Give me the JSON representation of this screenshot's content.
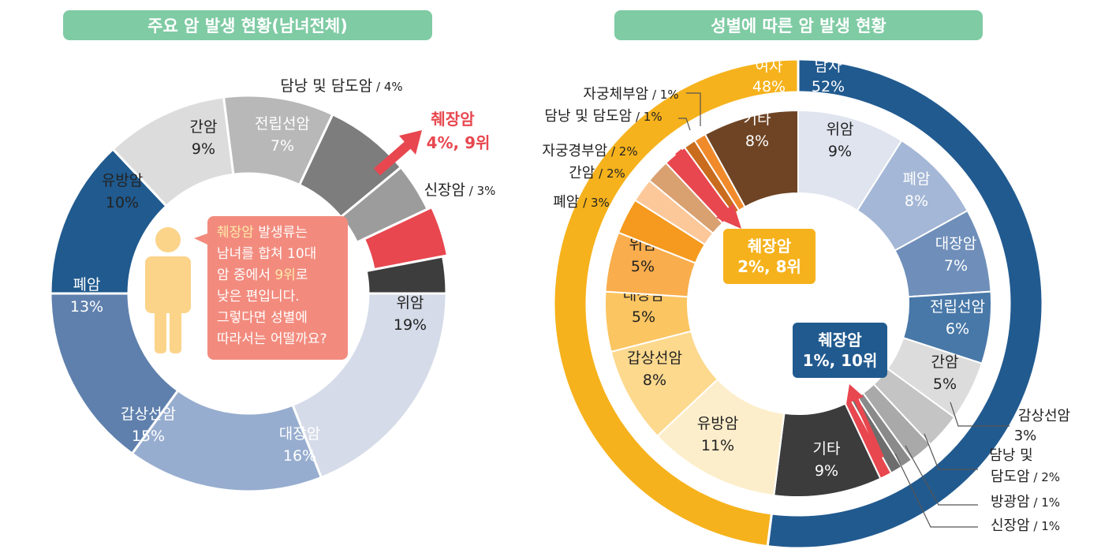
{
  "titles": {
    "left": "주요 암 발생 현황(남녀전체)",
    "right": "성별에 따른 암 발생 현황"
  },
  "bubble": {
    "line1_hl": "췌장암",
    "line1_rest": " 발생류는",
    "line2": "남녀를 합쳐 10대",
    "line3_pre": "암 중에서 ",
    "line3_hl": "9위",
    "line3_post": "로",
    "line4": "낮은 편입니다.",
    "line5": "그렇다면 성별에",
    "line6": "따라서는 어떨까요?"
  },
  "callouts": {
    "female_name": "췌장암",
    "female_value": "2%, 8위",
    "male_name": "췌장암",
    "male_value": "1%, 10위"
  },
  "colors": {
    "title_bg": "#7fcba4",
    "highlight_red": "#e8474f",
    "male_outer": "#215a8f",
    "female_outer": "#f6b21c",
    "bubble": "#f28b7e"
  },
  "chart_data": [
    {
      "type": "pie",
      "title": "주요 암 발생 현황(남녀전체)",
      "slices": [
        {
          "name": "위암",
          "value": 19
        },
        {
          "name": "대장암",
          "value": 16
        },
        {
          "name": "갑상선암",
          "value": 15
        },
        {
          "name": "폐암",
          "value": 13
        },
        {
          "name": "유방암",
          "value": 10
        },
        {
          "name": "간암",
          "value": 9
        },
        {
          "name": "전립선암",
          "value": 7
        },
        {
          "name": "담낭 및 담도암",
          "value": 4
        },
        {
          "name": "췌장암",
          "value": 4,
          "rank": "9위",
          "highlight": true
        },
        {
          "name": "신장암",
          "value": 3
        }
      ],
      "unit": "%"
    },
    {
      "type": "pie",
      "title": "성별에 따른 암 발생 현황",
      "outer": [
        {
          "name": "남자",
          "value": 52
        },
        {
          "name": "여자",
          "value": 48
        }
      ],
      "inner_male": [
        {
          "name": "위암",
          "value": 9
        },
        {
          "name": "폐암",
          "value": 8
        },
        {
          "name": "대장암",
          "value": 7
        },
        {
          "name": "전립선암",
          "value": 6
        },
        {
          "name": "간암",
          "value": 5
        },
        {
          "name": "감상선암",
          "value": 3
        },
        {
          "name": "담낭 및 담도암",
          "value": 2
        },
        {
          "name": "방광암",
          "value": 1
        },
        {
          "name": "신장암",
          "value": 1
        },
        {
          "name": "췌장암",
          "value": 1,
          "rank": "10위",
          "highlight": true
        },
        {
          "name": "기타",
          "value": 9
        }
      ],
      "inner_female": [
        {
          "name": "유방암",
          "value": 11
        },
        {
          "name": "갑상선암",
          "value": 8
        },
        {
          "name": "대장암",
          "value": 5
        },
        {
          "name": "위암",
          "value": 5
        },
        {
          "name": "폐암",
          "value": 3
        },
        {
          "name": "간암",
          "value": 2
        },
        {
          "name": "자궁경부암",
          "value": 2
        },
        {
          "name": "췌장암",
          "value": 2,
          "rank": "8위",
          "highlight": true
        },
        {
          "name": "담낭 및 담도암",
          "value": 1
        },
        {
          "name": "자궁체부암",
          "value": 1
        },
        {
          "name": "기타",
          "value": 8
        }
      ],
      "unit": "%"
    }
  ]
}
